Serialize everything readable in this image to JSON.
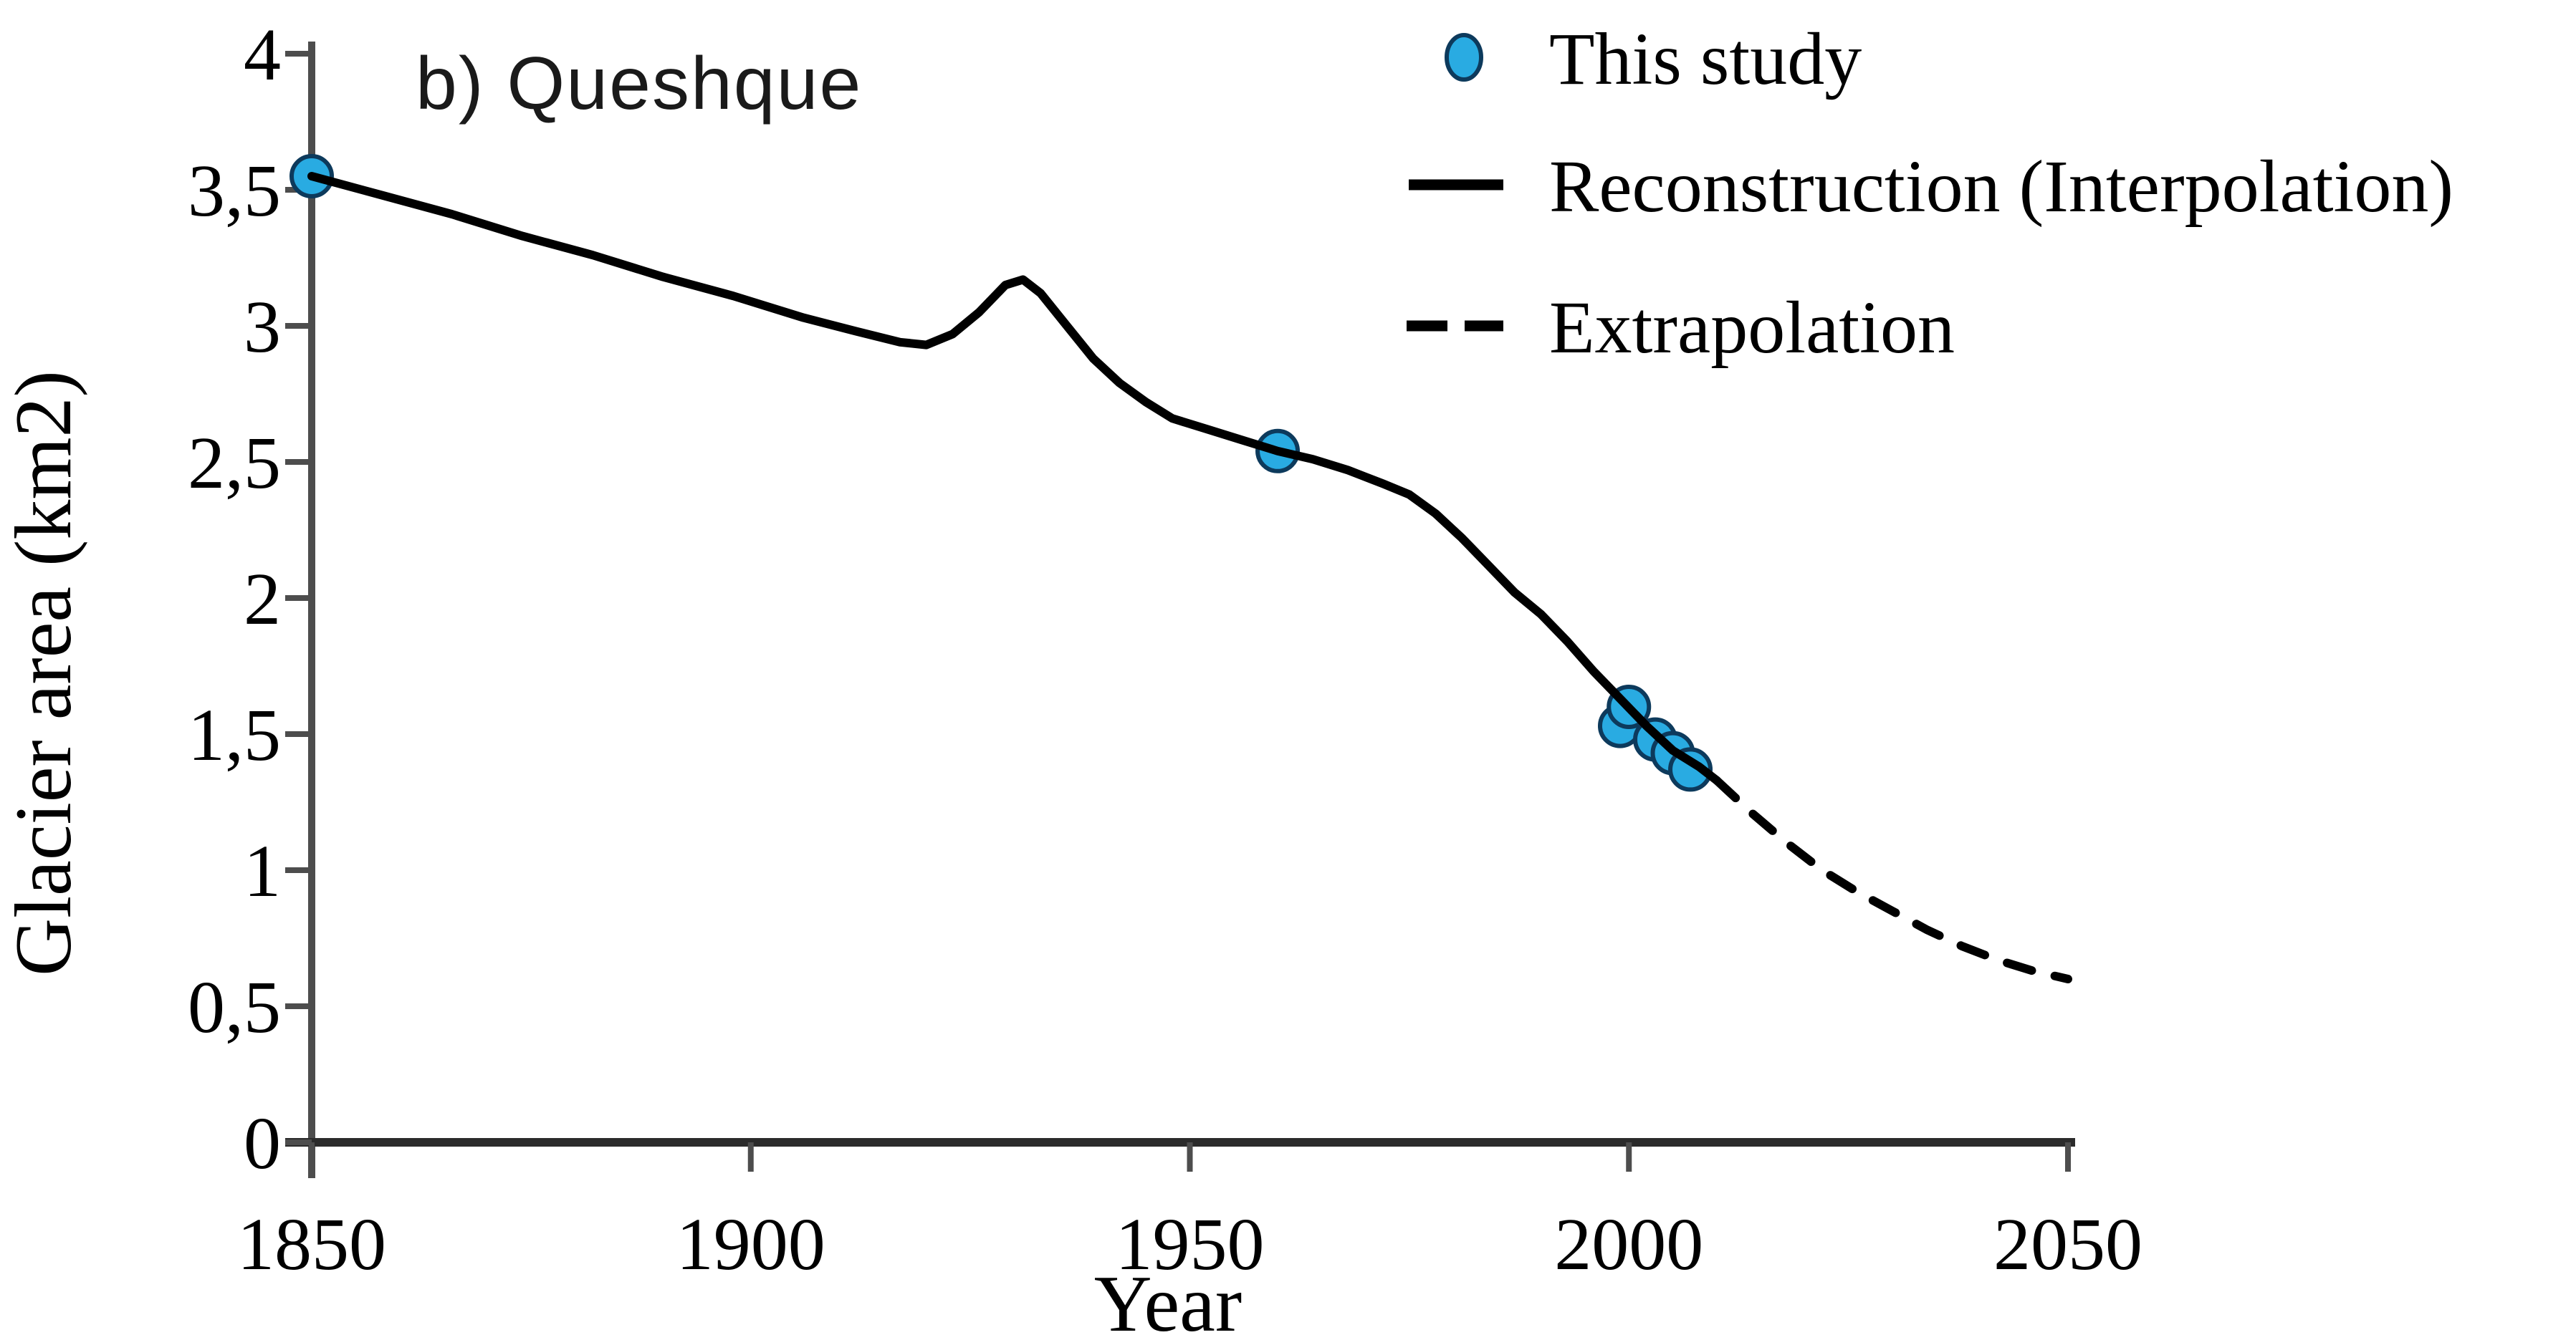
{
  "chart_data": {
    "type": "line",
    "title": "b) Queshque",
    "xlabel": "Year",
    "ylabel": "Glacier area (km2)",
    "xlim": [
      1850,
      2050
    ],
    "ylim": [
      0,
      4
    ],
    "x_ticks": [
      1850,
      1900,
      1950,
      2000,
      2050
    ],
    "x_tick_labels": [
      "1850",
      "1900",
      "1950",
      "2000",
      "2050"
    ],
    "y_ticks": [
      0,
      0.5,
      1,
      1.5,
      2,
      2.5,
      3,
      3.5,
      4
    ],
    "y_tick_labels": [
      "0",
      "0,5",
      "1",
      "1,5",
      "2",
      "2,5",
      "3",
      "3,5",
      "4"
    ],
    "decimal_separator": ",",
    "grid": false,
    "legend_position": "top-right",
    "colors": {
      "point_fill": "#29ABE2",
      "point_edge": "#0D3A5C",
      "line": "#000000",
      "axis": "#4d4d4d",
      "text": "#000000"
    },
    "series": [
      {
        "name": "This study",
        "type": "scatter",
        "color": "#29ABE2",
        "edge_color": "#0D3A5C",
        "points": [
          [
            1850,
            3.55
          ],
          [
            1960,
            2.54
          ],
          [
            1999,
            1.53
          ],
          [
            2000,
            1.6
          ],
          [
            2003,
            1.48
          ],
          [
            2005,
            1.43
          ],
          [
            2007,
            1.37
          ]
        ]
      },
      {
        "name": "Reconstruction (Interpolation)",
        "type": "line",
        "style": "solid",
        "color": "#000000",
        "points": [
          [
            1850,
            3.55
          ],
          [
            1858,
            3.48
          ],
          [
            1866,
            3.41
          ],
          [
            1874,
            3.33
          ],
          [
            1882,
            3.26
          ],
          [
            1890,
            3.18
          ],
          [
            1898,
            3.11
          ],
          [
            1906,
            3.03
          ],
          [
            1912,
            2.98
          ],
          [
            1917,
            2.94
          ],
          [
            1920,
            2.93
          ],
          [
            1923,
            2.97
          ],
          [
            1926,
            3.05
          ],
          [
            1929,
            3.15
          ],
          [
            1931,
            3.17
          ],
          [
            1933,
            3.12
          ],
          [
            1936,
            3.0
          ],
          [
            1939,
            2.88
          ],
          [
            1942,
            2.79
          ],
          [
            1945,
            2.72
          ],
          [
            1948,
            2.66
          ],
          [
            1952,
            2.62
          ],
          [
            1956,
            2.58
          ],
          [
            1960,
            2.54
          ],
          [
            1964,
            2.51
          ],
          [
            1968,
            2.47
          ],
          [
            1972,
            2.42
          ],
          [
            1975,
            2.38
          ],
          [
            1978,
            2.31
          ],
          [
            1981,
            2.22
          ],
          [
            1984,
            2.12
          ],
          [
            1987,
            2.02
          ],
          [
            1990,
            1.94
          ],
          [
            1993,
            1.84
          ],
          [
            1996,
            1.73
          ],
          [
            1999,
            1.63
          ],
          [
            2002,
            1.53
          ],
          [
            2005,
            1.44
          ],
          [
            2008,
            1.38
          ],
          [
            2010,
            1.33
          ]
        ]
      },
      {
        "name": "Extrapolation",
        "type": "line",
        "style": "dashed",
        "color": "#000000",
        "points": [
          [
            2010,
            1.33
          ],
          [
            2014,
            1.21
          ],
          [
            2018,
            1.1
          ],
          [
            2022,
            1.0
          ],
          [
            2026,
            0.92
          ],
          [
            2030,
            0.85
          ],
          [
            2034,
            0.78
          ],
          [
            2038,
            0.72
          ],
          [
            2042,
            0.67
          ],
          [
            2046,
            0.63
          ],
          [
            2050,
            0.6
          ]
        ]
      }
    ]
  }
}
